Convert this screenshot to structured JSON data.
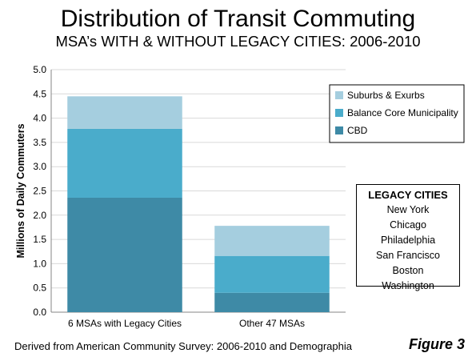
{
  "title": "Distribution of Transit Commuting",
  "subtitle": "MSA’s WITH & WITHOUT LEGACY CITIES: 2006-2010",
  "footer": "Derived from American Community Survey: 2006-2010 and Demographia",
  "figure_label": "Figure 3",
  "legacy_cities": {
    "heading": "LEGACY CITIES",
    "cities": [
      "New York",
      "Chicago",
      "Philadelphia",
      "San Francisco",
      "Boston",
      "Washington"
    ]
  },
  "colors": {
    "CBD": "#3e8aa6",
    "Balance Core Municipality": "#4aaccb",
    "Suburbs & Exurbs": "#a5cedf",
    "gridline": "#d9d9d9",
    "axis": "#868686"
  },
  "chart_data": {
    "type": "bar",
    "stacked": true,
    "categories": [
      "6 MSAs with Legacy Cities",
      "Other 47 MSAs"
    ],
    "series": [
      {
        "name": "CBD",
        "values": [
          2.36,
          0.4
        ]
      },
      {
        "name": "Balance Core Municipality",
        "values": [
          1.42,
          0.76
        ]
      },
      {
        "name": "Suburbs & Exurbs",
        "values": [
          0.67,
          0.62
        ]
      }
    ],
    "ylabel": "Millions of Daily Commuters",
    "ylim": [
      0,
      5.0
    ],
    "yticks": [
      "0.0",
      "0.5",
      "1.0",
      "1.5",
      "2.0",
      "2.5",
      "3.0",
      "3.5",
      "4.0",
      "4.5",
      "5.0"
    ],
    "grid": true,
    "legend_position": "right",
    "legend_order": [
      "Suburbs & Exurbs",
      "Balance Core Municipality",
      "CBD"
    ]
  }
}
